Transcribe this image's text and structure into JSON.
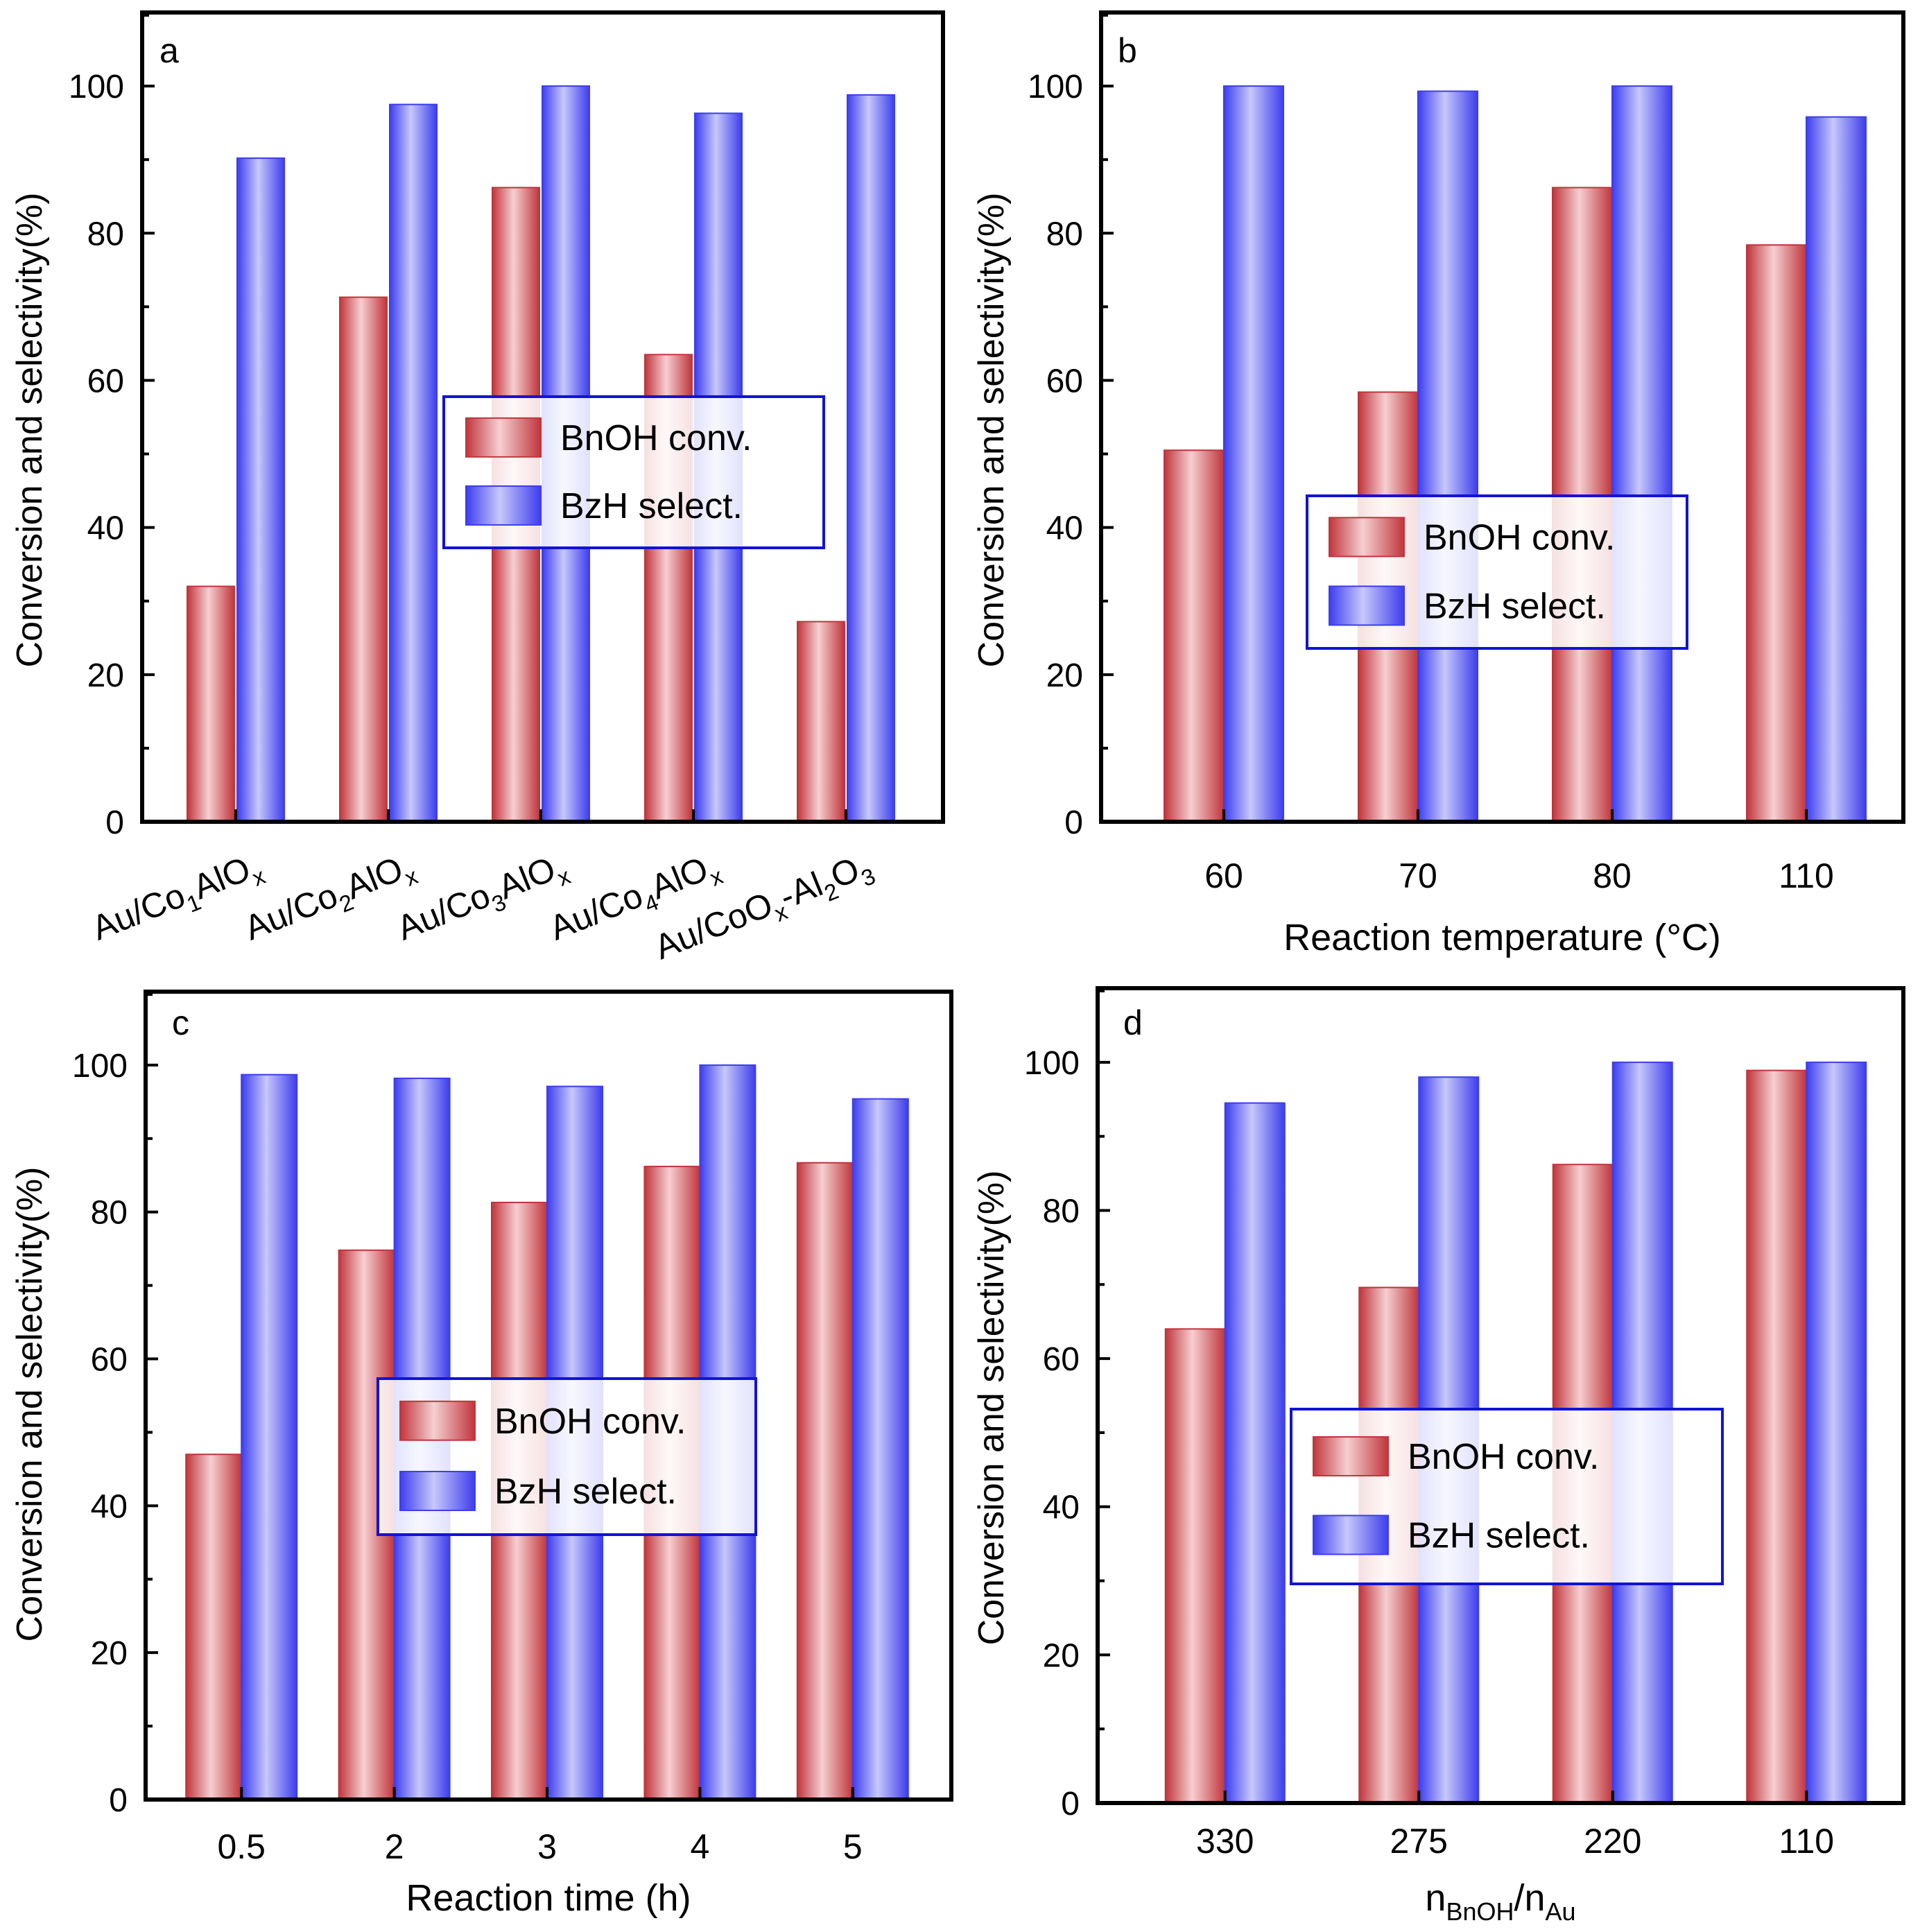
{
  "colors": {
    "conv_light": "#f6cfd1",
    "conv_dark": "#c0353c",
    "sel_light": "#c7c8fb",
    "sel_dark": "#3d3dee",
    "legend_border": "#1212d6",
    "frame": "#000000"
  },
  "chart_data": [
    {
      "panel": "a",
      "type": "bar",
      "categories": [
        "Au/Co1AlOx",
        "Au/Co2AlOx",
        "Au/Co3AlOx",
        "Au/Co4AlOx",
        "Au/CoOx-Al2O3"
      ],
      "category_labels": [
        [
          {
            "t": "Au/Co"
          },
          {
            "t": "1",
            "s": "sub"
          },
          {
            "t": "AlO"
          },
          {
            "t": "x",
            "s": "sub"
          }
        ],
        [
          {
            "t": "Au/Co"
          },
          {
            "t": "2",
            "s": "sub"
          },
          {
            "t": "AlO"
          },
          {
            "t": "x",
            "s": "sub"
          }
        ],
        [
          {
            "t": "Au/Co"
          },
          {
            "t": "3",
            "s": "sub"
          },
          {
            "t": "AlO"
          },
          {
            "t": "x",
            "s": "sub"
          }
        ],
        [
          {
            "t": "Au/Co"
          },
          {
            "t": "4",
            "s": "sub"
          },
          {
            "t": "AlO"
          },
          {
            "t": "x",
            "s": "sub"
          }
        ],
        [
          {
            "t": "Au/CoO"
          },
          {
            "t": "x",
            "s": "sub"
          },
          {
            "t": "-Al"
          },
          {
            "t": "2",
            "s": "sub"
          },
          {
            "t": "O"
          },
          {
            "t": "3",
            "s": "sub"
          }
        ]
      ],
      "series": [
        {
          "name": "BnOH conv.",
          "values": [
            32.0,
            71.3,
            86.2,
            63.5,
            27.2
          ]
        },
        {
          "name": "BzH select.",
          "values": [
            90.2,
            97.5,
            100.0,
            96.3,
            98.8
          ]
        }
      ],
      "ylabel": "Conversion and selectivity(%)",
      "xlabel": "",
      "xlabel_rich": [],
      "ylim": [
        0,
        110
      ],
      "yticks": [
        "0",
        "20",
        "40",
        "60",
        "80",
        "100"
      ],
      "rotated_ticks": true,
      "legend": [
        "BnOH conv.",
        "BzH select."
      ]
    },
    {
      "panel": "b",
      "type": "bar",
      "categories": [
        "60",
        "70",
        "80",
        "110"
      ],
      "series": [
        {
          "name": "BnOH conv.",
          "values": [
            50.5,
            58.4,
            86.2,
            78.4
          ]
        },
        {
          "name": "BzH select.",
          "values": [
            100.0,
            99.3,
            100.0,
            95.8
          ]
        }
      ],
      "ylabel": "Conversion and selectivity(%)",
      "xlabel": "Reaction temperature (°C)",
      "ylim": [
        0,
        110
      ],
      "yticks": [
        "0",
        "20",
        "40",
        "60",
        "80",
        "100"
      ],
      "rotated_ticks": false,
      "legend": [
        "BnOH conv.",
        "BzH select."
      ]
    },
    {
      "panel": "c",
      "type": "bar",
      "categories": [
        "0.5",
        "2",
        "3",
        "4",
        "5"
      ],
      "series": [
        {
          "name": "BnOH conv.",
          "values": [
            47.0,
            74.8,
            81.3,
            86.2,
            86.7
          ]
        },
        {
          "name": "BzH select.",
          "values": [
            98.7,
            98.2,
            97.1,
            100.0,
            95.4
          ]
        }
      ],
      "ylabel": "Conversion and selectivity(%)",
      "xlabel": "Reaction time (h)",
      "ylim": [
        0,
        110
      ],
      "yticks": [
        "0",
        "20",
        "40",
        "60",
        "80",
        "100"
      ],
      "rotated_ticks": false,
      "legend": [
        "BnOH conv.",
        "BzH select."
      ]
    },
    {
      "panel": "d",
      "type": "bar",
      "categories": [
        "330",
        "275",
        "220",
        "110"
      ],
      "series": [
        {
          "name": "BnOH conv.",
          "values": [
            64.0,
            69.6,
            86.2,
            98.9
          ]
        },
        {
          "name": "BzH select.",
          "values": [
            94.5,
            98.0,
            100.0,
            100.0
          ]
        }
      ],
      "ylabel": "Conversion and selectivity(%)",
      "xlabel": "nBnOH/nAu",
      "xlabel_rich": [
        {
          "t": "n"
        },
        {
          "t": "BnOH",
          "s": "sub"
        },
        {
          "t": "/n"
        },
        {
          "t": "Au",
          "s": "sub"
        }
      ],
      "ylim": [
        0,
        110
      ],
      "yticks": [
        "0",
        "20",
        "40",
        "60",
        "80",
        "100"
      ],
      "rotated_ticks": false,
      "legend": [
        "BnOH conv.",
        "BzH select."
      ]
    }
  ]
}
